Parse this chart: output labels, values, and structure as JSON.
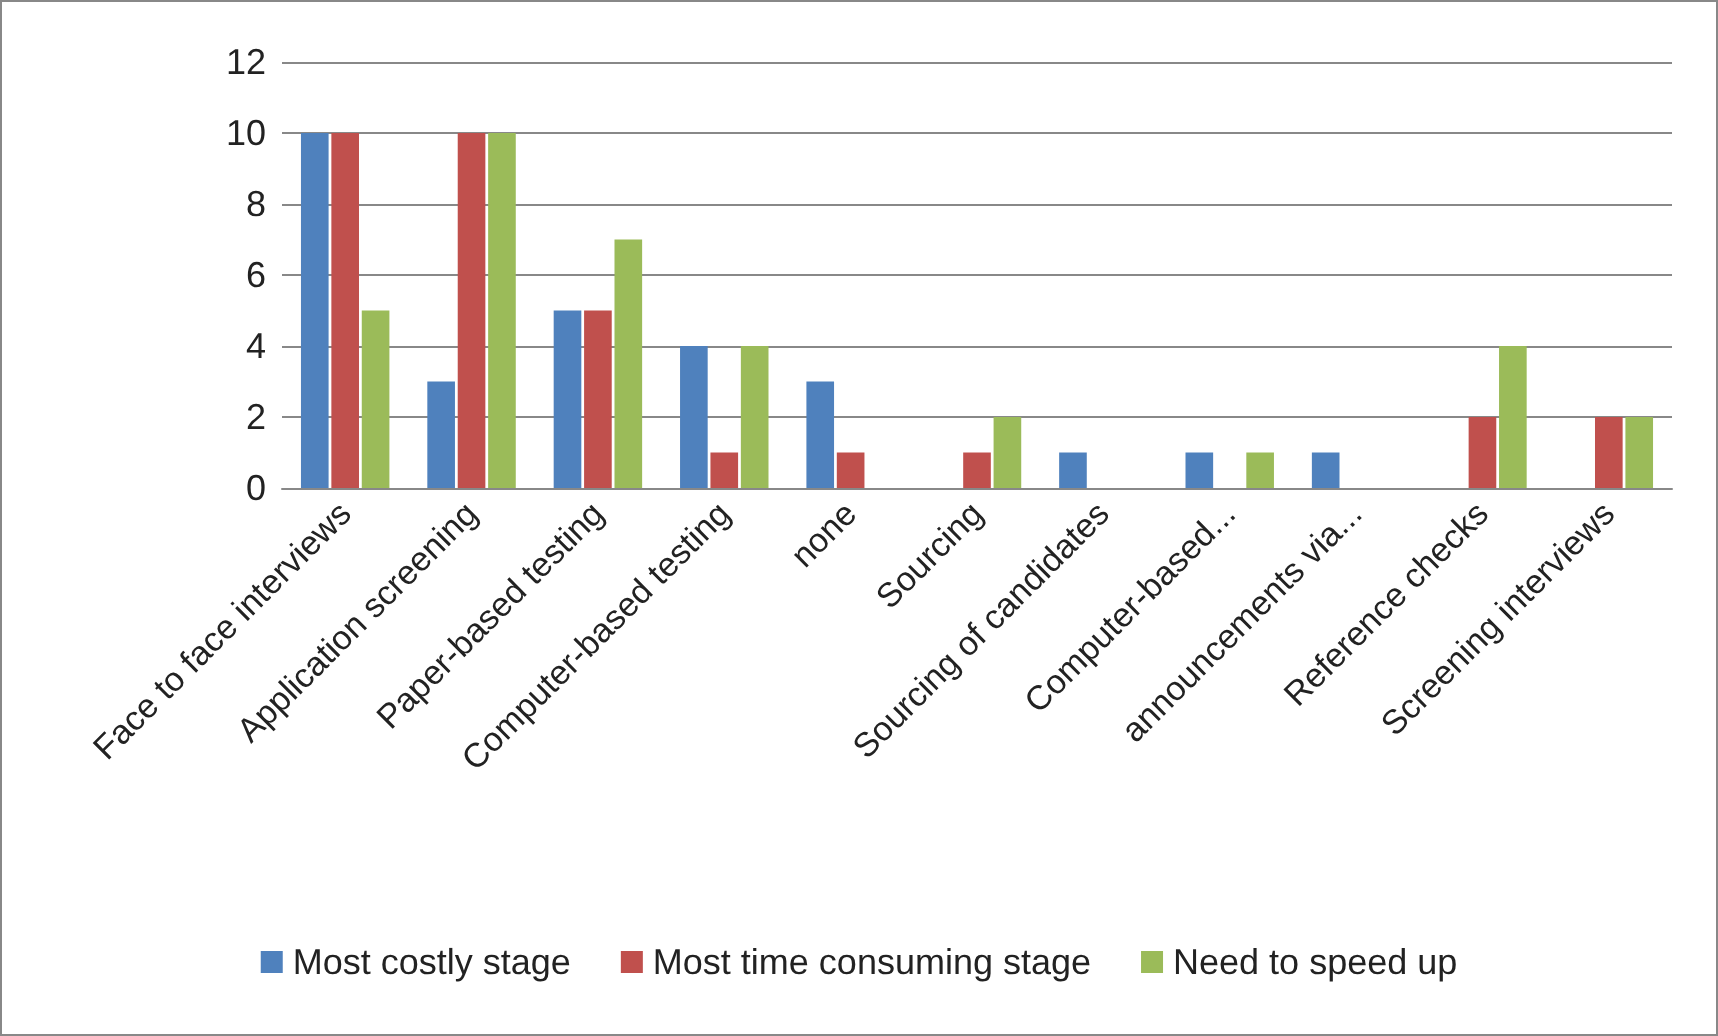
{
  "chart_data": {
    "type": "bar",
    "categories": [
      "Face to face interviews",
      "Application screening",
      "Paper-based testing",
      "Computer-based testing",
      "none",
      "Sourcing",
      "Sourcing of candidates",
      "Computer-based...",
      "announcements via...",
      "Reference checks",
      "Screening interviews"
    ],
    "series": [
      {
        "name": "Most costly stage",
        "color": "#4f81bd",
        "values": [
          10,
          3,
          5,
          4,
          3,
          0,
          1,
          1,
          1,
          0,
          0
        ]
      },
      {
        "name": "Most time consuming stage",
        "color": "#c0504d",
        "values": [
          10,
          10,
          5,
          1,
          1,
          1,
          0,
          0,
          0,
          2,
          2
        ]
      },
      {
        "name": "Need to speed up",
        "color": "#9bbb59",
        "values": [
          5,
          10,
          7,
          4,
          0,
          2,
          0,
          1,
          0,
          4,
          2
        ]
      }
    ],
    "ylim": [
      0,
      12
    ],
    "yticks": [
      0,
      2,
      4,
      6,
      8,
      10,
      12
    ],
    "grid": "y",
    "legend": "bottom"
  }
}
